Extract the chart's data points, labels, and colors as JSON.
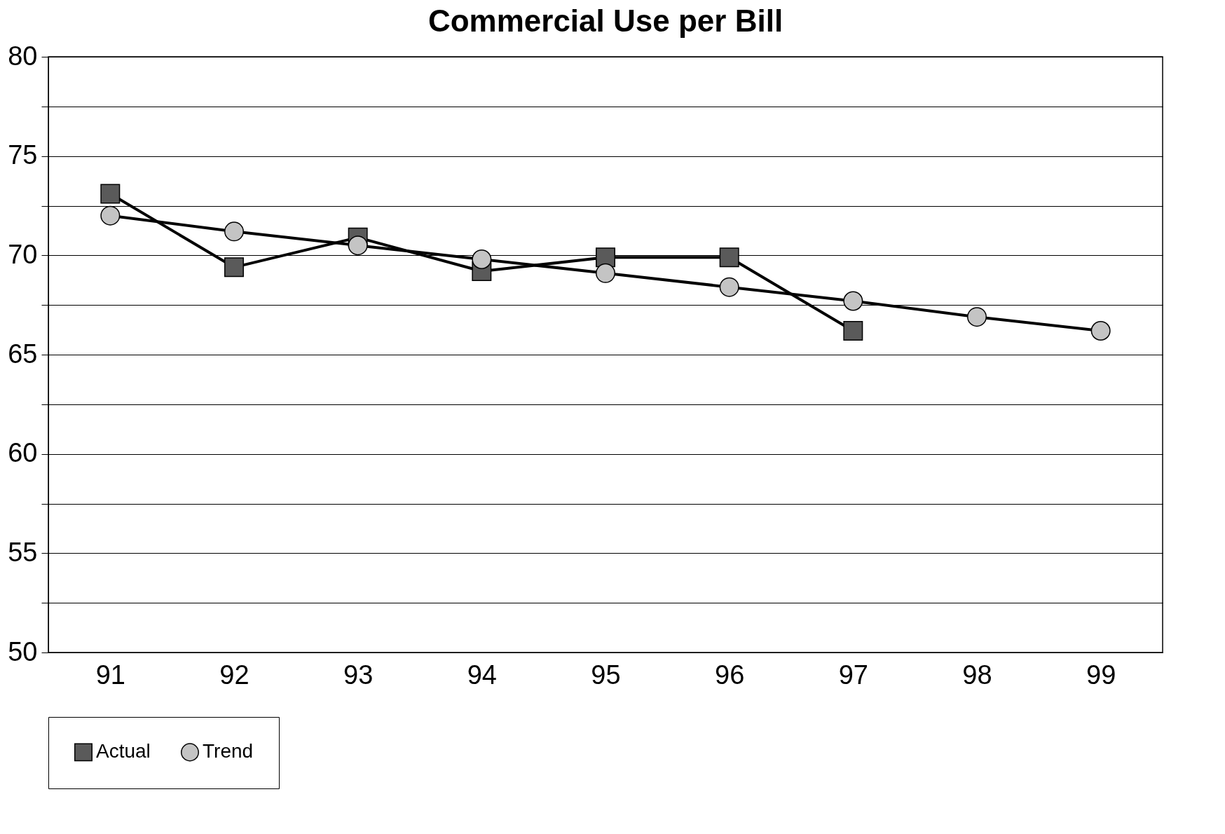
{
  "chart_data": {
    "type": "line",
    "title": "Commercial Use per Bill",
    "categories": [
      "91",
      "92",
      "93",
      "94",
      "95",
      "96",
      "97",
      "98",
      "99"
    ],
    "series": [
      {
        "name": "Actual",
        "color": "#5a5a5a",
        "marker": "square",
        "values": [
          73.1,
          69.4,
          70.9,
          69.2,
          69.9,
          69.9,
          66.2,
          null,
          null
        ]
      },
      {
        "name": "Trend",
        "color": "#c4c4c4",
        "marker": "circle",
        "values": [
          72.0,
          71.2,
          70.5,
          69.8,
          69.1,
          68.4,
          67.7,
          66.9,
          66.2
        ]
      }
    ],
    "ylim": [
      50,
      80
    ],
    "yticks": [
      50,
      {
        "value": 52.5,
        "label": null
      },
      55,
      {
        "value": 57.5,
        "label": null
      },
      60,
      {
        "value": 62.5,
        "label": null
      },
      65,
      {
        "value": 67.5,
        "label": null
      },
      70,
      {
        "value": 72.5,
        "label": null
      },
      75,
      {
        "value": 77.5,
        "label": null
      },
      80
    ],
    "grid": "y",
    "legend": "bottom",
    "line_style": "solid"
  }
}
